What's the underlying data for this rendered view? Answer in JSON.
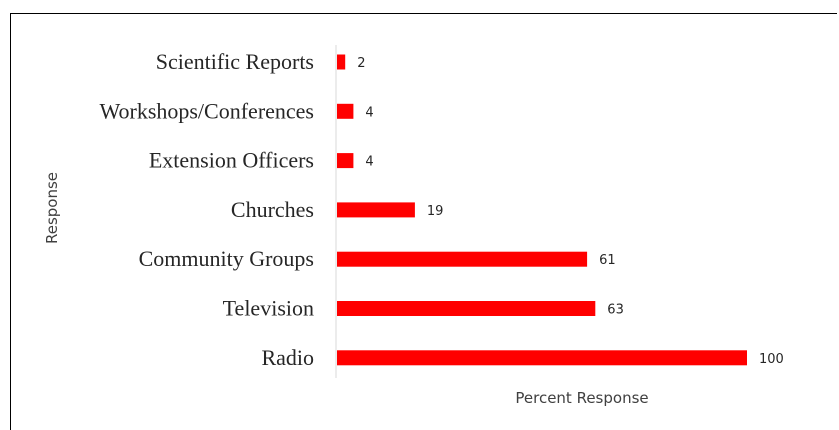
{
  "chart_data": {
    "type": "bar",
    "orientation": "horizontal",
    "categories": [
      "Scientific Reports",
      "Workshops/Conferences",
      "Extension Officers",
      "Churches",
      "Community Groups",
      "Television",
      "Radio"
    ],
    "values": [
      2,
      4,
      4,
      19,
      61,
      63,
      100
    ],
    "xlabel": "Percent Response",
    "ylabel": "Response",
    "xlim": [
      0,
      100
    ],
    "grid": false,
    "legend": "none",
    "bar_color": "#ff0000"
  }
}
